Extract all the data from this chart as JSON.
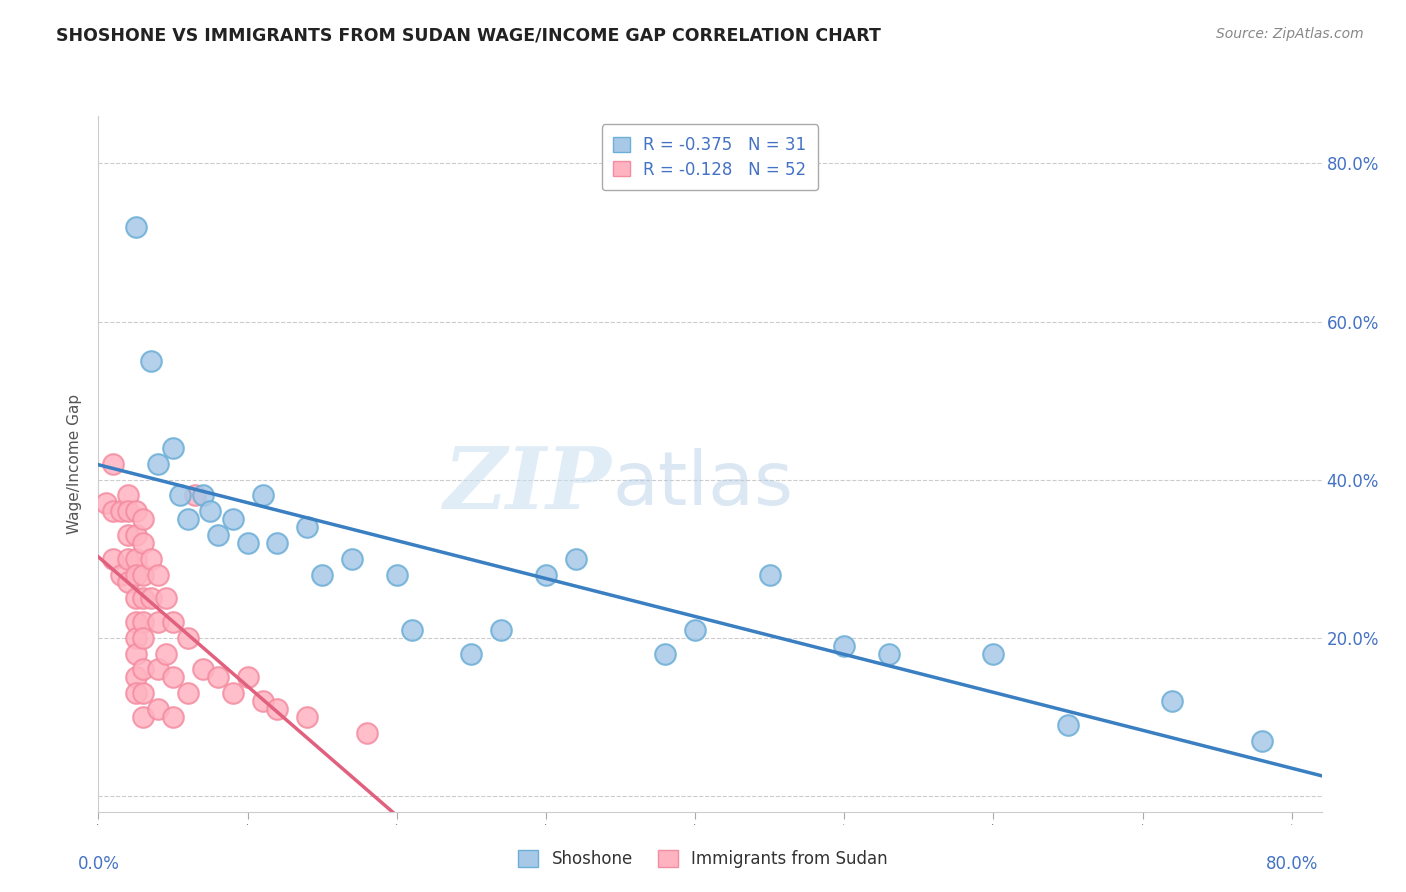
{
  "title": "SHOSHONE VS IMMIGRANTS FROM SUDAN WAGE/INCOME GAP CORRELATION CHART",
  "source": "Source: ZipAtlas.com",
  "ylabel": "Wage/Income Gap",
  "shoshone_R": -0.375,
  "shoshone_N": 31,
  "sudan_R": -0.128,
  "sudan_N": 52,
  "shoshone_color": "#a8c8e8",
  "shoshone_edge_color": "#6baed6",
  "sudan_color": "#ffb3c1",
  "sudan_edge_color": "#f48ca0",
  "shoshone_line_color": "#3a7fc1",
  "sudan_line_color": "#e0607e",
  "background_color": "#ffffff",
  "plot_bg_color": "#ffffff",
  "watermark_zip": "ZIP",
  "watermark_atlas": "atlas",
  "legend_labels": [
    "Shoshone",
    "Immigrants from Sudan"
  ],
  "xlim": [
    0.0,
    0.82
  ],
  "ylim": [
    -0.02,
    0.86
  ],
  "y_ticks": [
    0.0,
    0.2,
    0.4,
    0.6,
    0.8
  ],
  "y_tick_labels": [
    "",
    "20.0%",
    "40.0%",
    "60.0%",
    "80.0%"
  ],
  "shoshone_x": [
    0.025,
    0.035,
    0.04,
    0.05,
    0.055,
    0.06,
    0.07,
    0.075,
    0.08,
    0.09,
    0.1,
    0.11,
    0.12,
    0.14,
    0.15,
    0.17,
    0.2,
    0.21,
    0.25,
    0.27,
    0.3,
    0.32,
    0.38,
    0.4,
    0.45,
    0.5,
    0.53,
    0.6,
    0.65,
    0.72,
    0.78
  ],
  "shoshone_y": [
    0.72,
    0.55,
    0.42,
    0.44,
    0.38,
    0.35,
    0.38,
    0.36,
    0.33,
    0.35,
    0.32,
    0.38,
    0.32,
    0.34,
    0.28,
    0.3,
    0.28,
    0.21,
    0.18,
    0.21,
    0.28,
    0.3,
    0.18,
    0.21,
    0.28,
    0.19,
    0.18,
    0.18,
    0.09,
    0.12,
    0.07
  ],
  "sudan_x": [
    0.005,
    0.01,
    0.01,
    0.01,
    0.015,
    0.015,
    0.02,
    0.02,
    0.02,
    0.02,
    0.02,
    0.025,
    0.025,
    0.025,
    0.025,
    0.025,
    0.025,
    0.025,
    0.025,
    0.025,
    0.025,
    0.03,
    0.03,
    0.03,
    0.03,
    0.03,
    0.03,
    0.03,
    0.03,
    0.03,
    0.035,
    0.035,
    0.04,
    0.04,
    0.04,
    0.04,
    0.045,
    0.045,
    0.05,
    0.05,
    0.05,
    0.06,
    0.06,
    0.065,
    0.07,
    0.08,
    0.09,
    0.1,
    0.11,
    0.12,
    0.14,
    0.18
  ],
  "sudan_y": [
    0.37,
    0.42,
    0.36,
    0.3,
    0.36,
    0.28,
    0.38,
    0.36,
    0.33,
    0.3,
    0.27,
    0.36,
    0.33,
    0.3,
    0.28,
    0.25,
    0.22,
    0.2,
    0.18,
    0.15,
    0.13,
    0.35,
    0.32,
    0.28,
    0.25,
    0.22,
    0.2,
    0.16,
    0.13,
    0.1,
    0.3,
    0.25,
    0.28,
    0.22,
    0.16,
    0.11,
    0.25,
    0.18,
    0.22,
    0.15,
    0.1,
    0.2,
    0.13,
    0.38,
    0.16,
    0.15,
    0.13,
    0.15,
    0.12,
    0.11,
    0.1,
    0.08
  ]
}
